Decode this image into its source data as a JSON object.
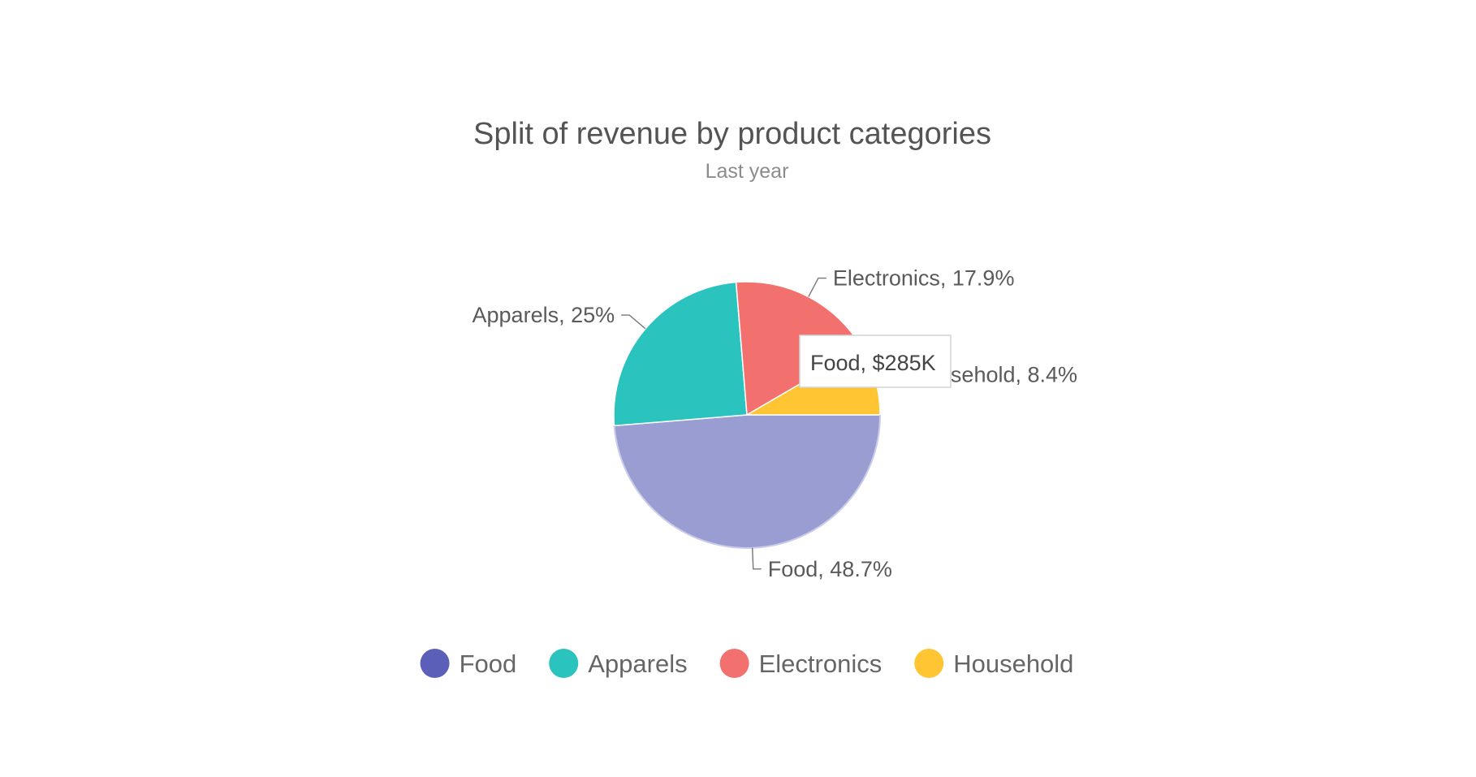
{
  "chart_data": {
    "type": "pie",
    "title": "Split of revenue by product categories",
    "subtitle": "Last year",
    "slices": [
      {
        "name": "Food",
        "percent": 48.7,
        "percent_label": "48.7%",
        "color": "#9a9dd2",
        "legend_color": "#5c5fb8"
      },
      {
        "name": "Apparels",
        "percent": 25,
        "percent_label": "25%",
        "color": "#2ac3bd",
        "legend_color": "#2ac3bd"
      },
      {
        "name": "Electronics",
        "percent": 17.9,
        "percent_label": "17.9%",
        "color": "#f2716e",
        "legend_color": "#f2716e"
      },
      {
        "name": "Household",
        "percent": 8.4,
        "percent_label": "8.4%",
        "color": "#ffc533",
        "legend_color": "#ffc533"
      }
    ],
    "tooltip": {
      "text": "Food, $285K"
    },
    "legend_position": "bottom"
  }
}
